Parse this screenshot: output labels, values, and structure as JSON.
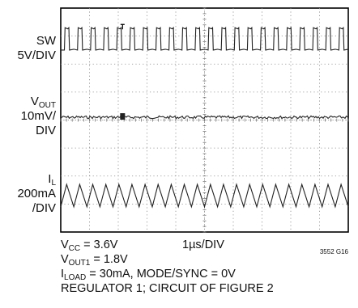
{
  "figure_id": "3552 G16",
  "timebase": "1µs/DIV",
  "channels": [
    {
      "name": "SW",
      "name_sub": "",
      "scale_line1": "5V/DIV",
      "scale_line2": ""
    },
    {
      "name": "V",
      "name_sub": "OUT",
      "scale_line1": "10mV/",
      "scale_line2": "DIV"
    },
    {
      "name": "I",
      "name_sub": "L",
      "scale_line1": "200mA",
      "scale_line2": "/DIV"
    }
  ],
  "conditions": {
    "vcc_symbol": "V",
    "vcc_sub": "CC",
    "vcc_value": " = 3.6V",
    "vout_symbol": "V",
    "vout_sub": "OUT1",
    "vout_value": " = 1.8V",
    "iload_symbol": "I",
    "iload_sub": "LOAD",
    "iload_value": " = 30mA, MODE/SYNC = 0V",
    "circuit": "REGULATOR 1; CIRCUIT OF FIGURE 2"
  },
  "chart_data": {
    "type": "line",
    "x_divisions": 10,
    "y_divisions": 8,
    "x_unit": "1µs/DIV",
    "grid": true,
    "series": [
      {
        "name": "SW",
        "scale": "5V/DIV",
        "waveform": "square",
        "cycles_on_screen": 22,
        "amplitude_div": 0.8,
        "center_div": 6.9
      },
      {
        "name": "VOUT",
        "scale": "10mV/DIV",
        "waveform": "noise",
        "amplitude_div": 0.05,
        "center_div": 4.1
      },
      {
        "name": "IL",
        "scale": "200mA/DIV",
        "waveform": "triangle",
        "cycles_on_screen": 22,
        "amplitude_div": 0.8,
        "center_div": 1.3
      }
    ]
  }
}
